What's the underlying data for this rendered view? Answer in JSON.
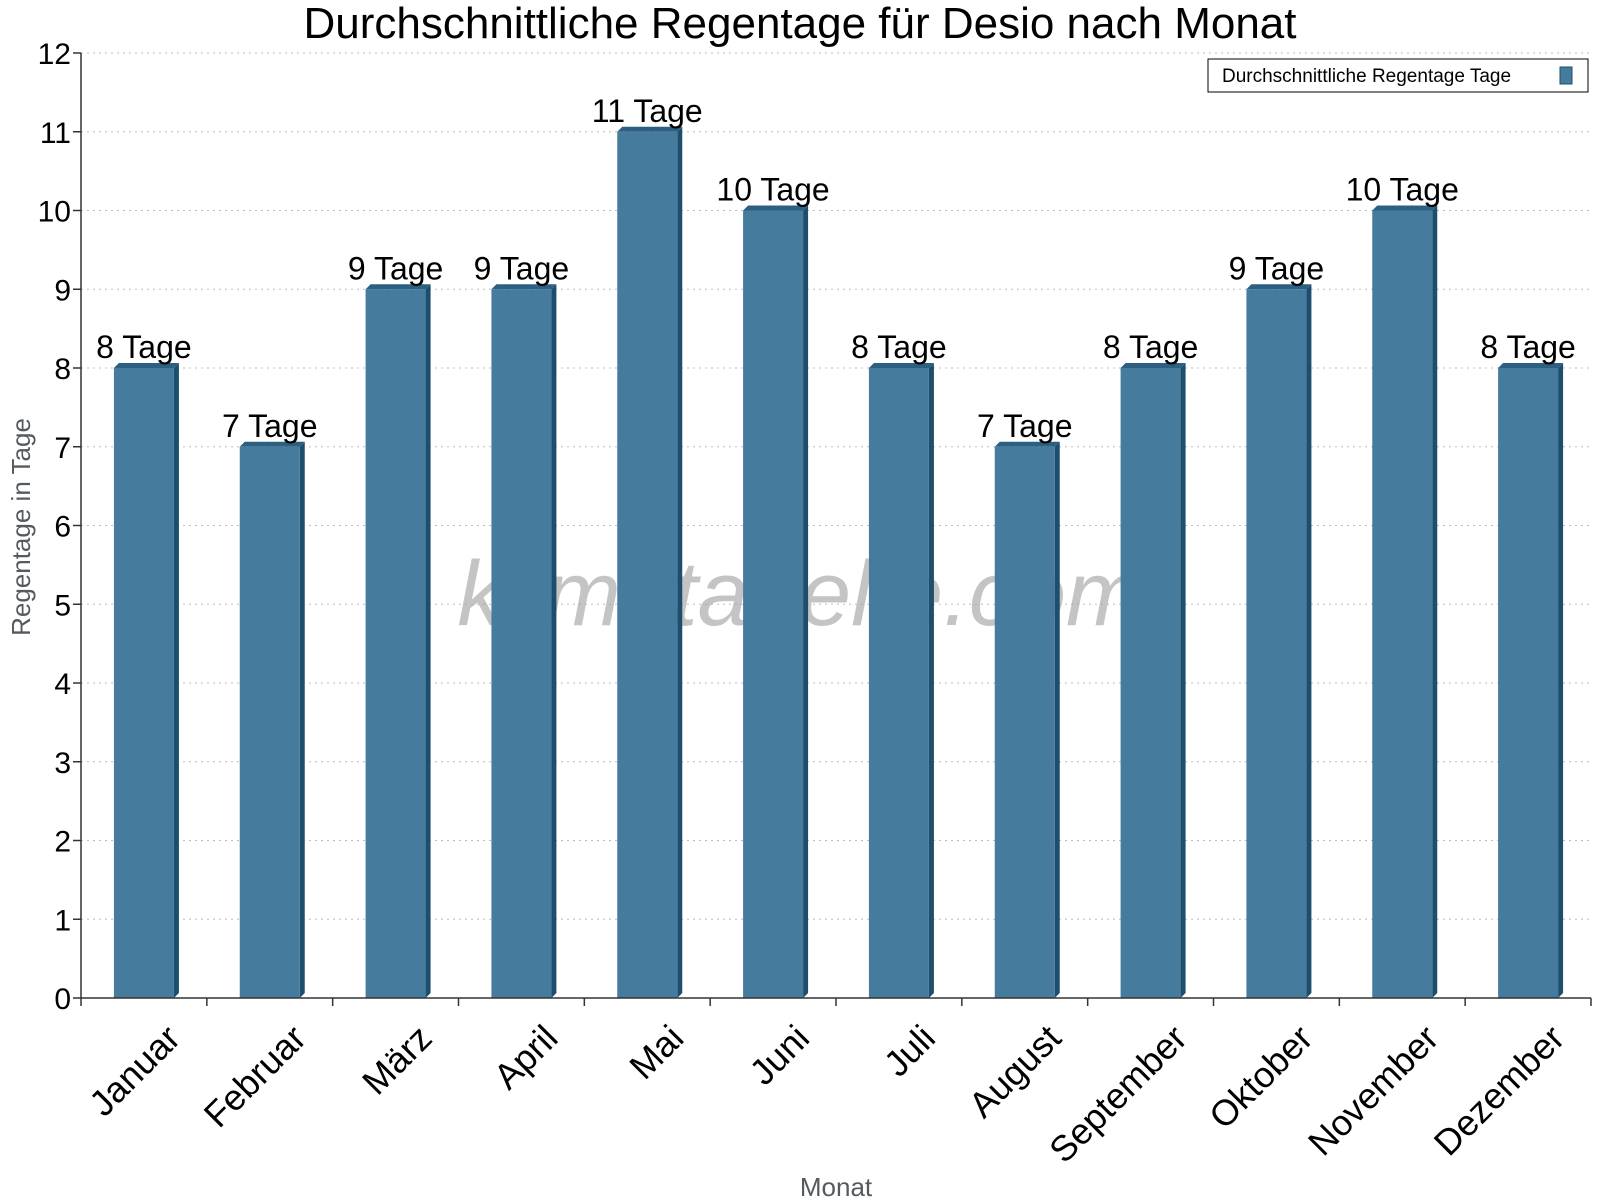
{
  "chart_data": {
    "type": "bar",
    "title": "Durchschnittliche Regentage für Desio nach Monat",
    "xlabel": "Monat",
    "ylabel": "Regentage in Tage",
    "ylim": [
      0,
      12
    ],
    "yticks": [
      "0",
      "1",
      "2",
      "3",
      "4",
      "5",
      "6",
      "7",
      "8",
      "9",
      "10",
      "11",
      "12"
    ],
    "grid": true,
    "legend_position": "top-right",
    "categories": [
      "Januar",
      "Februar",
      "März",
      "April",
      "Mai",
      "Juni",
      "Juli",
      "August",
      "September",
      "Oktober",
      "November",
      "Dezember"
    ],
    "series": [
      {
        "name": "Durchschnittliche Regentage Tage",
        "values": [
          8,
          7,
          9,
          9,
          11,
          10,
          8,
          7,
          8,
          9,
          10,
          8
        ],
        "labels": [
          "8 Tage",
          "7 Tage",
          "9 Tage",
          "9 Tage",
          "11 Tage",
          "10 Tage",
          "8 Tage",
          "7 Tage",
          "8 Tage",
          "9 Tage",
          "10 Tage",
          "8 Tage"
        ]
      }
    ],
    "colors": {
      "bar": "#457b9d",
      "bar_side": "#1d4e6e",
      "bar_top": "#2d5f80"
    },
    "watermark": "klimatabelle.com"
  }
}
